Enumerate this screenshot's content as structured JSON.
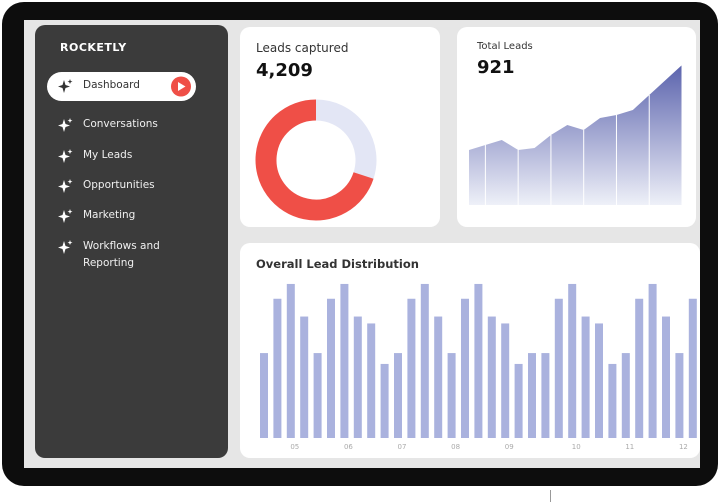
{
  "sidebar": {
    "brand": "ROCKETLY",
    "active": 0,
    "nav": [
      {
        "label": "Dashboard"
      },
      {
        "label": "Conversations"
      },
      {
        "label": "My Leads"
      },
      {
        "label": "Opportunities"
      },
      {
        "label": "Marketing"
      },
      {
        "label": "Workflows and Reporting"
      }
    ]
  },
  "cards": [
    {
      "title": "Leads captured",
      "value": "4,209"
    },
    {
      "title": "Total Leads",
      "value": "921"
    },
    {
      "title": "Overall Lead Distribution"
    }
  ],
  "chart_data": [
    {
      "type": "pie",
      "donut": true,
      "values": [
        30,
        70
      ],
      "colors": [
        "#e3e6f5",
        "#ef4f47"
      ]
    },
    {
      "type": "area",
      "values": [
        55,
        60,
        65,
        55,
        57,
        70,
        80,
        75,
        87,
        90,
        95,
        110,
        125,
        140
      ],
      "ylim": [
        0,
        150
      ],
      "color": "#5b63ad"
    },
    {
      "type": "bar",
      "color": "#aab2de",
      "ylim": [
        0,
        160
      ],
      "categories": [
        null,
        null,
        "05",
        null,
        null,
        null,
        "06",
        null,
        null,
        null,
        "07",
        null,
        null,
        null,
        "08",
        null,
        null,
        null,
        "09",
        null,
        null,
        null,
        null,
        "10",
        null,
        null,
        null,
        "11",
        null,
        null,
        null,
        "12",
        null
      ],
      "values": [
        86,
        141,
        156,
        123,
        86,
        141,
        156,
        123,
        116,
        75,
        86,
        141,
        156,
        123,
        86,
        141,
        156,
        123,
        116,
        75,
        86,
        86,
        141,
        156,
        123,
        116,
        75,
        86,
        141,
        156,
        123,
        86,
        141
      ]
    }
  ]
}
